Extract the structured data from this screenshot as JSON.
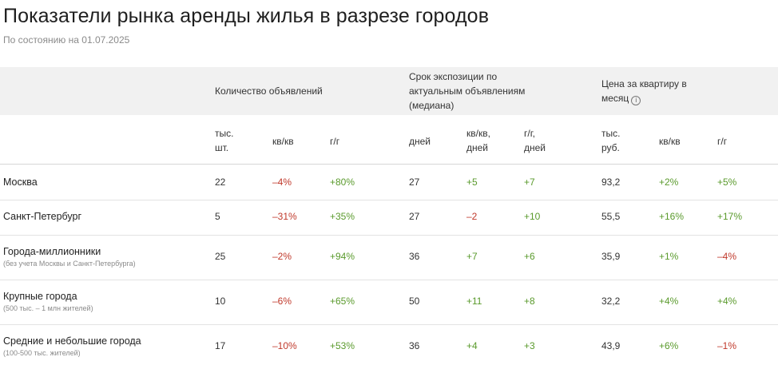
{
  "title": "Показатели рынка аренды жилья в разрезе городов",
  "subtitle": "По состоянию на 01.07.2025",
  "groups": {
    "listings": "Количество объявлений",
    "exposure_line1": "Срок экспозиции по",
    "exposure_line2": "актуальным объявлениям",
    "exposure_line3": "(медиана)",
    "price_line1": "Цена за квартиру в",
    "price_line2": "месяц",
    "info_icon": "i"
  },
  "subheaders": {
    "c1_l1": "тыс.",
    "c1_l2": "шт.",
    "c2": "кв/кв",
    "c3": "г/г",
    "c4": "дней",
    "c5_l1": "кв/кв,",
    "c5_l2": "дней",
    "c6_l1": "г/г,",
    "c6_l2": "дней",
    "c7_l1": "тыс.",
    "c7_l2": "руб.",
    "c8": "кв/кв",
    "c9": "г/г"
  },
  "rows": [
    {
      "city": "Москва",
      "note": "",
      "cells": [
        "22",
        "–4%",
        "+80%",
        "27",
        "+5",
        "+7",
        "93,2",
        "+2%",
        "+5%"
      ]
    },
    {
      "city": "Санкт-Петербург",
      "note": "",
      "cells": [
        "5",
        "–31%",
        "+35%",
        "27",
        "–2",
        "+10",
        "55,5",
        "+16%",
        "+17%"
      ]
    },
    {
      "city": "Города-миллионники",
      "note": "(без учета Москвы и Санкт-Петербурга)",
      "cells": [
        "25",
        "–2%",
        "+94%",
        "36",
        "+7",
        "+6",
        "35,9",
        "+1%",
        "–4%"
      ]
    },
    {
      "city": "Крупные города",
      "note": "(500 тыс. – 1 млн жителей)",
      "cells": [
        "10",
        "–6%",
        "+65%",
        "50",
        "+11",
        "+8",
        "32,2",
        "+4%",
        "+4%"
      ]
    },
    {
      "city": "Средние и небольшие города",
      "note": "(100-500 тыс. жителей)",
      "cells": [
        "17",
        "–10%",
        "+53%",
        "36",
        "+4",
        "+3",
        "43,9",
        "+6%",
        "–1%"
      ]
    }
  ],
  "colors": {
    "negative": "#c0392b",
    "positive": "#5a9a2c",
    "header_band": "#f1f1f1"
  }
}
